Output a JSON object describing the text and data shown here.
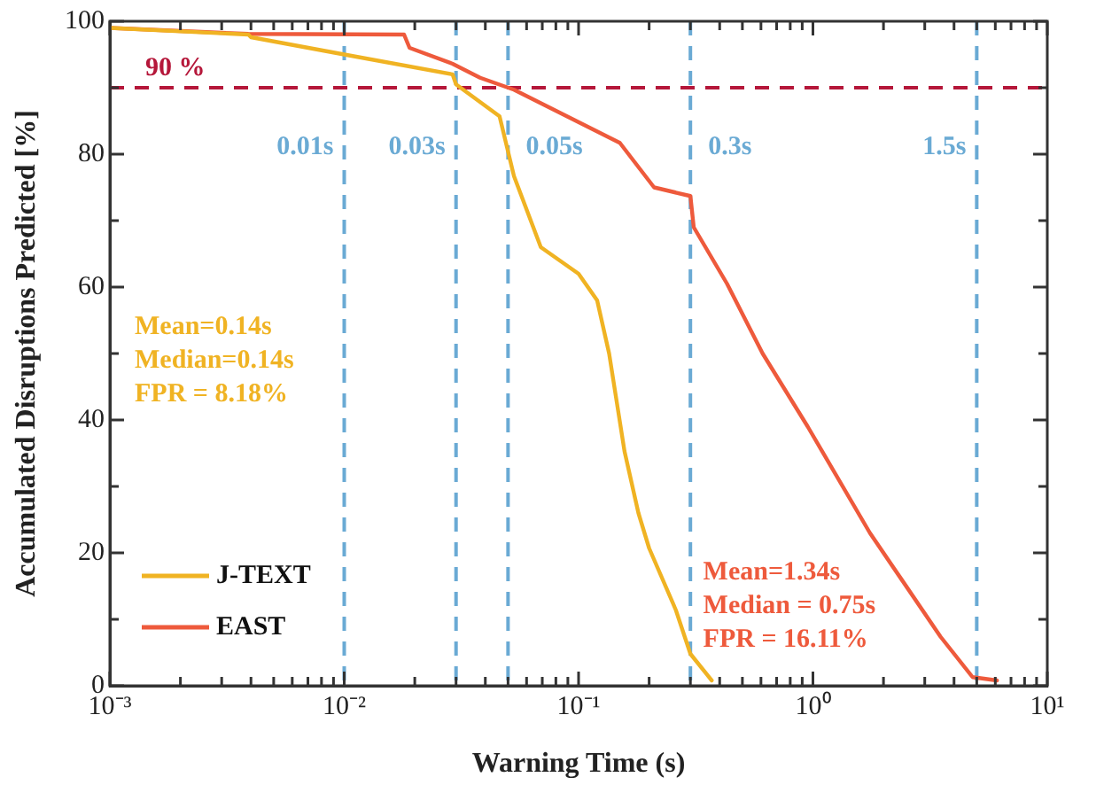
{
  "chart_data": {
    "type": "line",
    "xlabel": "Warning Time (s)",
    "ylabel": "Accumulated Disruptions Predicted [%]",
    "log": "x",
    "xlim": [
      0.001,
      10
    ],
    "ylim": [
      0,
      100
    ],
    "xticks": [
      {
        "value": 0.001,
        "label": "10⁻³"
      },
      {
        "value": 0.002,
        "label": null
      },
      {
        "value": 0.003,
        "label": null
      },
      {
        "value": 0.004,
        "label": null
      },
      {
        "value": 0.005,
        "label": null
      },
      {
        "value": 0.006,
        "label": null
      },
      {
        "value": 0.007,
        "label": null
      },
      {
        "value": 0.008,
        "label": null
      },
      {
        "value": 0.009,
        "label": null
      },
      {
        "value": 0.01,
        "label": "10⁻²"
      },
      {
        "value": 0.02,
        "label": null
      },
      {
        "value": 0.03,
        "label": null
      },
      {
        "value": 0.04,
        "label": null
      },
      {
        "value": 0.05,
        "label": null
      },
      {
        "value": 0.06,
        "label": null
      },
      {
        "value": 0.07,
        "label": null
      },
      {
        "value": 0.08,
        "label": null
      },
      {
        "value": 0.09,
        "label": null
      },
      {
        "value": 0.1,
        "label": "10⁻¹"
      },
      {
        "value": 0.2,
        "label": null
      },
      {
        "value": 0.3,
        "label": null
      },
      {
        "value": 0.4,
        "label": null
      },
      {
        "value": 0.5,
        "label": null
      },
      {
        "value": 0.6,
        "label": null
      },
      {
        "value": 0.7,
        "label": null
      },
      {
        "value": 0.8,
        "label": null
      },
      {
        "value": 0.9,
        "label": null
      },
      {
        "value": 1,
        "label": "10⁰"
      },
      {
        "value": 2,
        "label": null
      },
      {
        "value": 3,
        "label": null
      },
      {
        "value": 4,
        "label": null
      },
      {
        "value": 5,
        "label": null
      },
      {
        "value": 6,
        "label": null
      },
      {
        "value": 7,
        "label": null
      },
      {
        "value": 8,
        "label": null
      },
      {
        "value": 9,
        "label": null
      },
      {
        "value": 10,
        "label": "10¹"
      }
    ],
    "yticks": [
      0,
      {
        "value": 10,
        "label": null
      },
      20,
      {
        "value": 30,
        "label": null
      },
      40,
      {
        "value": 50,
        "label": null
      },
      60,
      {
        "value": 70,
        "label": null
      },
      80,
      {
        "value": 90,
        "label": null
      },
      100
    ],
    "grid": false,
    "legend": "bottom left",
    "marker": "none",
    "line_style": "solid",
    "series": [
      {
        "name": "J-TEXT",
        "color": "#f0b323",
        "x": [
          0.001,
          0.0039,
          0.004,
          0.01,
          0.029,
          0.03,
          0.046,
          0.053,
          0.069,
          0.1,
          0.12,
          0.135,
          0.157,
          0.18,
          0.2,
          0.26,
          0.3,
          0.37
        ],
        "values": [
          99,
          98,
          97.6,
          95,
          92,
          90.5,
          85.7,
          76.7,
          66,
          62,
          58,
          50,
          35.3,
          26,
          20.7,
          11.4,
          4.8,
          0.8
        ]
      },
      {
        "name": "EAST",
        "color": "#ee5a3c",
        "x": [
          0.001,
          0.0039,
          0.018,
          0.019,
          0.029,
          0.038,
          0.053,
          0.15,
          0.21,
          0.3,
          0.31,
          0.43,
          0.61,
          0.95,
          1.75,
          3.5,
          4.8,
          6.1
        ],
        "values": [
          99,
          98.1,
          98,
          96,
          93.6,
          91.5,
          89.7,
          81.7,
          75,
          73.7,
          69,
          60.5,
          50,
          39,
          23,
          7.4,
          1.3,
          0.8
        ]
      }
    ],
    "ref_lines": [
      {
        "axis": "y",
        "value": 90,
        "label": "90 %",
        "color": "#b5173a",
        "line_style": "dashed"
      },
      {
        "axis": "x",
        "value": 0.01,
        "label": "0.01s",
        "color": "#6aaad4",
        "line_style": "dashed"
      },
      {
        "axis": "x",
        "value": 0.03,
        "label": "0.03s",
        "color": "#6aaad4",
        "line_style": "dashed"
      },
      {
        "axis": "x",
        "value": 0.05,
        "label": "0.05s",
        "color": "#6aaad4",
        "line_style": "dashed"
      },
      {
        "axis": "x",
        "value": 0.3,
        "label": "0.3s",
        "color": "#6aaad4",
        "line_style": "dashed"
      },
      {
        "axis": "x",
        "value": 5,
        "label": "1.5s",
        "color": "#6aaad4",
        "line_style": "dashed"
      }
    ],
    "annotations": [
      "Mean=0.14s",
      "Median=0.14s",
      "FPR = 8.18%",
      "Mean=1.34s",
      "Median = 0.75s",
      "FPR = 16.11%"
    ]
  }
}
